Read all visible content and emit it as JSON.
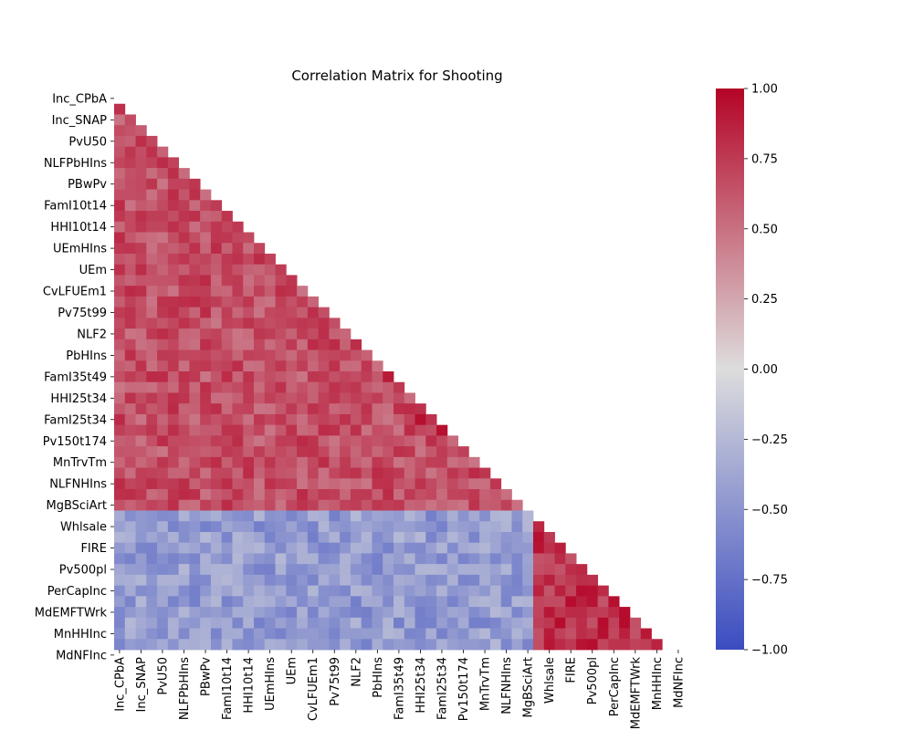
{
  "chart_data": {
    "type": "heatmap",
    "title": "Correlation Matrix for Shooting",
    "mask": "upper-triangle",
    "n_variables": 52,
    "colormap": "coolwarm",
    "colormap_stops": [
      "#3b4cc0",
      "#dddddd",
      "#b40426"
    ],
    "vmin": -1.0,
    "vmax": 1.0,
    "colorbar_ticks": [
      "1.00",
      "0.75",
      "0.50",
      "0.25",
      "0.00",
      "−0.25",
      "−0.50",
      "−0.75",
      "−1.00"
    ],
    "colorbar_tick_values": [
      1.0,
      0.75,
      0.5,
      0.25,
      0.0,
      -0.25,
      -0.5,
      -0.75,
      -1.0
    ],
    "y_tick_labels": [
      "Inc_CPbA",
      "Inc_SNAP",
      "PvU50",
      "NLFPbHIns",
      "PBwPv",
      "FamI10t14",
      "HHI10t14",
      "UEmHIns",
      "UEm",
      "CvLFUEm1",
      "Pv75t99",
      "NLF2",
      "PbHIns",
      "FamI35t49",
      "HHI25t34",
      "FamI25t34",
      "Pv150t174",
      "MnTrvTm",
      "NLFNHIns",
      "MgBSciArt",
      "Whlsale",
      "FIRE",
      "Pv500pl",
      "PerCapInc",
      "MdEMFTWrk",
      "MnHHInc",
      "MdNFInc"
    ],
    "x_tick_labels": [
      "Inc_CPbA",
      "Inc_SNAP",
      "PvU50",
      "NLFPbHIns",
      "PBwPv",
      "FamI10t14",
      "HHI10t14",
      "UEmHIns",
      "UEm",
      "CvLFUEm1",
      "Pv75t99",
      "NLF2",
      "PbHIns",
      "FamI35t49",
      "HHI25t34",
      "FamI25t34",
      "Pv150t174",
      "MnTrvTm",
      "NLFNHIns",
      "MgBSciArt",
      "Whlsale",
      "FIRE",
      "Pv500pl",
      "PerCapInc",
      "MdEMFTWrk",
      "MnHHInc",
      "MdNFInc"
    ],
    "block_structure": {
      "groups": [
        {
          "from": 0,
          "to": 38,
          "internal": 0.65
        },
        {
          "from": 39,
          "to": 51,
          "internal": 0.8
        }
      ],
      "between_group_mean": -0.45
    },
    "strong_cells": [
      {
        "row": 30,
        "col": 28,
        "value": 0.95
      },
      {
        "row": 26,
        "col": 25,
        "value": 0.9
      },
      {
        "row": 31,
        "col": 30,
        "value": 0.95
      }
    ]
  }
}
